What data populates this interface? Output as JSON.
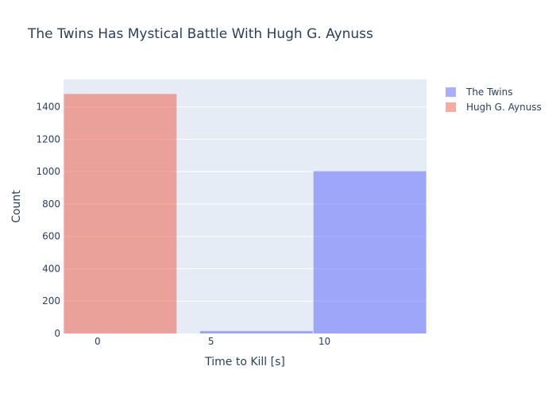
{
  "chart_data": {
    "type": "bar",
    "title": "The Twins Has Mystical Battle With Hugh G. Aynuss",
    "xlabel": "Time to Kill [s]",
    "ylabel": "Count",
    "xlim": [
      -1.5,
      14.5
    ],
    "ylim": [
      0,
      1570
    ],
    "xticks": [
      0,
      5,
      10
    ],
    "yticks": [
      0,
      200,
      400,
      600,
      800,
      1000,
      1200,
      1400
    ],
    "grid": true,
    "legend_position": "top-right, outside plot",
    "series": [
      {
        "name": "The Twins",
        "color": "#636efa",
        "bins": [
          {
            "x0": 4.5,
            "x1": 9.5,
            "count": 15
          },
          {
            "x0": 9.5,
            "x1": 14.5,
            "count": 1003
          }
        ]
      },
      {
        "name": "Hugh G. Aynuss",
        "color": "#ef553b",
        "bins": [
          {
            "x0": -1.5,
            "x1": 3.5,
            "count": 1480
          }
        ]
      }
    ]
  }
}
